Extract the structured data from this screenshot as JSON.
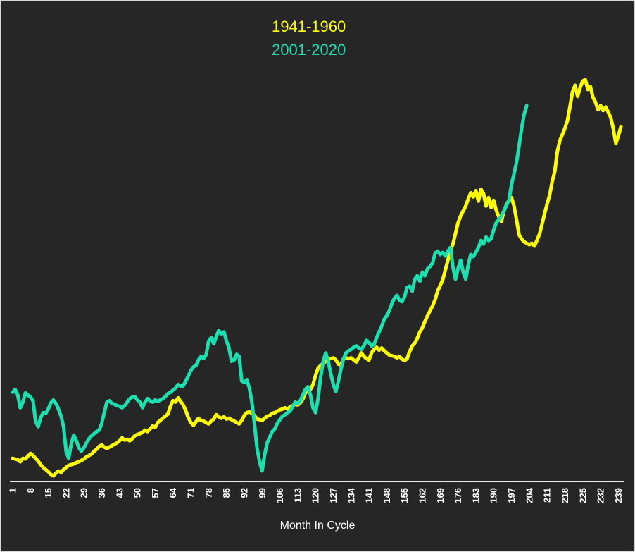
{
  "colors": {
    "background": "#262626",
    "frame_border": "#D6D6D6",
    "axis_line": "#EDEDED",
    "tick_text": "#FFFFFF",
    "series_1941_1960": "#FFFF00",
    "series_2001_2020": "#1CDFB0"
  },
  "legend": [
    {
      "label": "1941-1960",
      "color": "#FFFF00"
    },
    {
      "label": "2001-2020",
      "color": "#1CDFB0"
    }
  ],
  "chart_data": {
    "type": "line",
    "title": "",
    "xlabel": "Month In Cycle",
    "ylabel": "",
    "grid": false,
    "y_axis_visible": false,
    "y_units": "relative index (no y-axis labels shown)",
    "legend_position": "top-center",
    "xlim": [
      1,
      240
    ],
    "ylim": [
      0,
      600
    ],
    "x_ticks": [
      1,
      8,
      15,
      22,
      29,
      36,
      43,
      50,
      57,
      64,
      71,
      78,
      85,
      92,
      99,
      106,
      113,
      120,
      127,
      134,
      141,
      148,
      155,
      162,
      169,
      176,
      183,
      190,
      197,
      204,
      211,
      218,
      225,
      232,
      239
    ],
    "series": [
      {
        "name": "1941-1960",
        "color": "#FFFF00",
        "x_start": 1,
        "x_step": 1,
        "values": [
          33,
          32,
          31,
          28,
          33,
          32,
          36,
          40,
          37,
          33,
          29,
          24,
          20,
          17,
          14,
          10,
          8,
          12,
          15,
          13,
          17,
          20,
          23,
          24,
          25,
          27,
          28,
          30,
          32,
          35,
          37,
          39,
          43,
          46,
          50,
          52,
          49,
          47,
          49,
          51,
          53,
          55,
          58,
          62,
          59,
          60,
          58,
          61,
          65,
          67,
          68,
          70,
          73,
          71,
          75,
          79,
          77,
          84,
          87,
          90,
          93,
          96,
          107,
          115,
          113,
          119,
          114,
          109,
          101,
          91,
          84,
          80,
          85,
          90,
          87,
          86,
          84,
          82,
          86,
          89,
          95,
          92,
          90,
          92,
          89,
          90,
          88,
          86,
          84,
          82,
          87,
          94,
          98,
          99,
          97,
          94,
          89,
          88,
          87,
          90,
          93,
          94,
          97,
          98,
          100,
          102,
          103,
          105,
          103,
          106,
          108,
          110,
          109,
          112,
          117,
          126,
          130,
          131,
          138,
          151,
          161,
          165,
          168,
          171,
          174,
          175,
          176,
          173,
          167,
          166,
          175,
          176,
          175,
          176,
          173,
          170,
          176,
          183,
          178,
          175,
          173,
          183,
          188,
          191,
          187,
          190,
          186,
          183,
          180,
          179,
          178,
          176,
          178,
          174,
          172,
          175,
          185,
          193,
          197,
          204,
          213,
          219,
          228,
          236,
          243,
          250,
          259,
          271,
          279,
          287,
          301,
          315,
          328,
          338,
          353,
          368,
          378,
          385,
          392,
          402,
          411,
          405,
          414,
          399,
          416,
          410,
          392,
          404,
          390,
          400,
          386,
          377,
          370,
          384,
          394,
          400,
          404,
          392,
          372,
          351,
          345,
          341,
          339,
          337,
          339,
          335,
          343,
          352,
          366,
          381,
          395,
          408,
          427,
          441,
          469,
          485,
          494,
          503,
          514,
          534,
          555,
          564,
          548,
          561,
          570,
          572,
          558,
          562,
          547,
          540,
          529,
          535,
          528,
          533,
          526,
          518,
          502,
          481,
          492,
          505
        ]
      },
      {
        "name": "2001-2020",
        "color": "#1CDFB0",
        "x_start": 1,
        "x_step": 1,
        "values": [
          127,
          131,
          123,
          105,
          113,
          126,
          123,
          120,
          115,
          86,
          78,
          91,
          98,
          97,
          103,
          112,
          116,
          111,
          103,
          93,
          78,
          43,
          33,
          53,
          66,
          58,
          48,
          43,
          48,
          55,
          61,
          65,
          68,
          71,
          73,
          83,
          98,
          113,
          115,
          111,
          110,
          108,
          107,
          105,
          108,
          113,
          118,
          120,
          121,
          116,
          113,
          105,
          113,
          118,
          115,
          113,
          116,
          114,
          116,
          118,
          121,
          125,
          127,
          130,
          133,
          138,
          136,
          136,
          143,
          150,
          158,
          163,
          165,
          173,
          178,
          175,
          180,
          200,
          205,
          196,
          206,
          215,
          210,
          213,
          200,
          190,
          171,
          173,
          181,
          178,
          143,
          141,
          145,
          133,
          113,
          83,
          48,
          28,
          15,
          38,
          55,
          63,
          71,
          75,
          83,
          88,
          93,
          95,
          98,
          100,
          107,
          113,
          111,
          115,
          123,
          131,
          135,
          123,
          105,
          98,
          118,
          148,
          171,
          183,
          171,
          153,
          138,
          128,
          143,
          160,
          175,
          183,
          186,
          188,
          191,
          193,
          190,
          188,
          193,
          201,
          198,
          193,
          195,
          205,
          213,
          221,
          231,
          236,
          243,
          253,
          261,
          265,
          258,
          256,
          263,
          276,
          278,
          271,
          288,
          293,
          285,
          298,
          293,
          303,
          306,
          311,
          325,
          328,
          323,
          326,
          321,
          328,
          333,
          305,
          288,
          303,
          315,
          298,
          288,
          308,
          323,
          320,
          326,
          333,
          343,
          338,
          348,
          343,
          345,
          358,
          368,
          373,
          378,
          385,
          393,
          400,
          423,
          438,
          455,
          478,
          503,
          523,
          535
        ]
      }
    ]
  }
}
